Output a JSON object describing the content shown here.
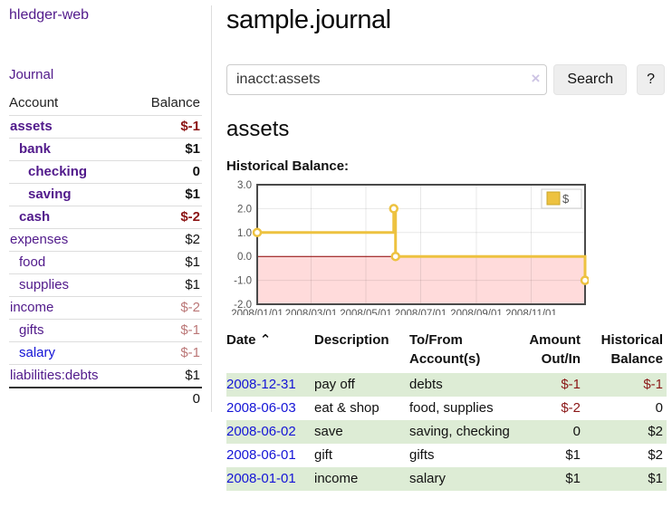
{
  "colors": {
    "link_purple": "#511a8b",
    "link_blue": "#1414d6",
    "negative_dark": "#8b1414",
    "negative_dim": "#bb7777",
    "row_stripe_green": "#ddecd5",
    "chart_line": "#edc240",
    "chart_negative_region": "#ffdbdb",
    "chart_zero_line": "#8b0000",
    "divider_gray": "#dddddd"
  },
  "sidebar": {
    "app_title": "hledger-web",
    "nav_journal": "Journal",
    "table": {
      "headers": {
        "account": "Account",
        "balance": "Balance"
      },
      "accounts": [
        {
          "name": "assets",
          "indent": 0,
          "emph": true,
          "balance": "$-1"
        },
        {
          "name": "bank",
          "indent": 1,
          "emph": true,
          "balance": "$1"
        },
        {
          "name": "checking",
          "indent": 2,
          "emph": true,
          "balance": "0"
        },
        {
          "name": "saving",
          "indent": 2,
          "emph": true,
          "balance": "$1"
        },
        {
          "name": "cash",
          "indent": 1,
          "emph": true,
          "balance": "$-2"
        },
        {
          "name": "expenses",
          "indent": 0,
          "emph": false,
          "balance": "$2"
        },
        {
          "name": "food",
          "indent": 1,
          "emph": false,
          "balance": "$1"
        },
        {
          "name": "supplies",
          "indent": 1,
          "emph": false,
          "balance": "$1"
        },
        {
          "name": "income",
          "indent": 0,
          "emph": false,
          "balance": "$-2"
        },
        {
          "name": "gifts",
          "indent": 1,
          "emph": false,
          "balance": "$-1"
        },
        {
          "name": "salary",
          "indent": 1,
          "emph": false,
          "balance": "$-1",
          "unvisited": true
        },
        {
          "name": "liabilities:debts",
          "indent": 0,
          "emph": false,
          "balance": "$1"
        }
      ],
      "total": "0"
    }
  },
  "header": {
    "title": "sample.journal"
  },
  "search": {
    "query": "inacct:assets",
    "clear_icon": "×",
    "search_button": "Search",
    "help_button": "?"
  },
  "account_page": {
    "heading": "assets",
    "chart_label": "Historical Balance:"
  },
  "chart_data": {
    "type": "line",
    "step": true,
    "title": "Historical Balance",
    "series": [
      {
        "name": "$",
        "color": "#edc240",
        "points": [
          [
            "2008-01-01",
            1
          ],
          [
            "2008-06-01",
            2
          ],
          [
            "2008-06-03",
            0
          ],
          [
            "2008-12-31",
            -1
          ]
        ]
      }
    ],
    "xlim": [
      "2008-01-01",
      "2008-12-31"
    ],
    "ylim": [
      -2,
      3
    ],
    "x_ticks": [
      "2008/01/01",
      "2008/03/01",
      "2008/05/01",
      "2008/07/01",
      "2008/09/01",
      "2008/11/01"
    ],
    "y_ticks": [
      "3.0",
      "2.0",
      "1.0",
      "0.0",
      "-1.0",
      "-2.0"
    ],
    "legend": {
      "label": "$",
      "position": "top-right"
    },
    "grid": true,
    "negative_region_shaded": true
  },
  "transactions": {
    "headers": {
      "date": "Date",
      "sort_icon": "⌃",
      "description": "Description",
      "accounts": "To/From\nAccount(s)",
      "amount": "Amount\nOut/In",
      "balance": "Historical\nBalance"
    },
    "rows": [
      {
        "date": "2008-12-31",
        "description": "pay off",
        "accounts": "debts",
        "amount": "$-1",
        "balance": "$-1"
      },
      {
        "date": "2008-06-03",
        "description": "eat & shop",
        "accounts": "food, supplies",
        "amount": "$-2",
        "balance": "0"
      },
      {
        "date": "2008-06-02",
        "description": "save",
        "accounts": "saving, checking",
        "amount": "0",
        "balance": "$2"
      },
      {
        "date": "2008-06-01",
        "description": "gift",
        "accounts": "gifts",
        "amount": "$1",
        "balance": "$2"
      },
      {
        "date": "2008-01-01",
        "description": "income",
        "accounts": "salary",
        "amount": "$1",
        "balance": "$1"
      }
    ]
  }
}
